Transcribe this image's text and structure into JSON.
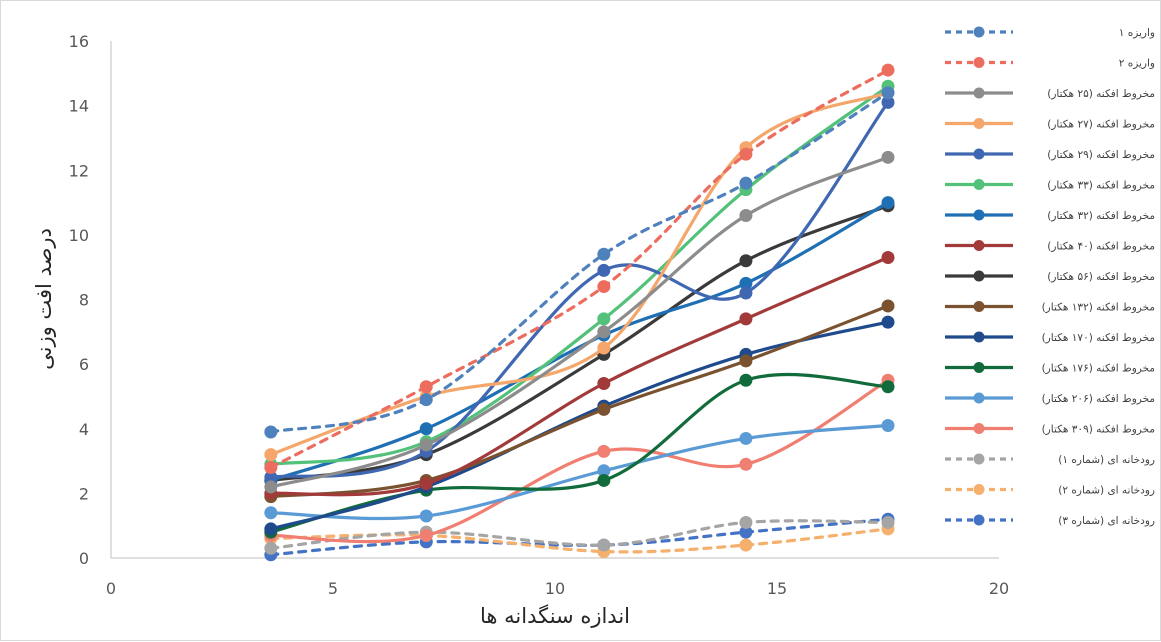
{
  "chart_data": {
    "type": "line",
    "title": "",
    "xlabel": "اندازه سنگدانه ها",
    "ylabel": "درصد افت وزنی",
    "xlim": [
      0,
      20
    ],
    "ylim": [
      0,
      16
    ],
    "xticks": [
      0,
      5,
      10,
      15,
      20
    ],
    "yticks": [
      0,
      2,
      4,
      6,
      8,
      10,
      12,
      14,
      16
    ],
    "grid": false,
    "legend_position": "right",
    "x": [
      3.6,
      7.1,
      11.1,
      14.3,
      17.5
    ],
    "series": [
      {
        "name": "واریزه ۱",
        "color": "#4f81bd",
        "dashed": true,
        "values": [
          3.9,
          4.9,
          9.4,
          11.6,
          14.4
        ]
      },
      {
        "name": "واریزه ۲",
        "color": "#ec6d5e",
        "dashed": true,
        "values": [
          2.8,
          5.3,
          8.4,
          12.5,
          15.1
        ]
      },
      {
        "name": "مخروط افکنه (۲۵ هکتار)",
        "color": "#8c8c8c",
        "dashed": false,
        "values": [
          2.2,
          3.5,
          7.0,
          10.6,
          12.4
        ]
      },
      {
        "name": "مخروط افکنه (۲۷ هکتار)",
        "color": "#f5a76b",
        "dashed": false,
        "values": [
          3.2,
          5.0,
          6.5,
          12.7,
          14.4
        ]
      },
      {
        "name": "مخروط افکنه (۲۹ هکتار)",
        "color": "#4068b2",
        "dashed": false,
        "values": [
          2.5,
          3.3,
          8.9,
          8.2,
          14.1
        ]
      },
      {
        "name": "مخروط افکنه (۳۳ هکتار)",
        "color": "#53c17a",
        "dashed": false,
        "values": [
          2.9,
          3.6,
          7.4,
          11.4,
          14.6
        ]
      },
      {
        "name": "مخروط افکنه (۳۲ هکتار)",
        "color": "#1f6fb4",
        "dashed": false,
        "values": [
          2.4,
          4.0,
          6.9,
          8.5,
          11.0
        ]
      },
      {
        "name": "مخروط افکنه (۴۰ هکتار)",
        "color": "#a33a3a",
        "dashed": false,
        "values": [
          2.0,
          2.3,
          5.4,
          7.4,
          9.3
        ]
      },
      {
        "name": "مخروط افکنه (۵۶ هکتار)",
        "color": "#3a3a3a",
        "dashed": false,
        "values": [
          2.4,
          3.2,
          6.3,
          9.2,
          10.9
        ]
      },
      {
        "name": "مخروط افکنه (۱۳۲ هکتار)",
        "color": "#7a5230",
        "dashed": false,
        "values": [
          1.9,
          2.4,
          4.6,
          6.1,
          7.8
        ]
      },
      {
        "name": "مخروط افکنه (۱۷۰ هکتار)",
        "color": "#1f4a8c",
        "dashed": false,
        "values": [
          0.9,
          2.2,
          4.7,
          6.3,
          7.3
        ]
      },
      {
        "name": "مخروط افکنه (۱۷۶ هکتار)",
        "color": "#116b3b",
        "dashed": false,
        "values": [
          0.8,
          2.1,
          2.4,
          5.5,
          5.3
        ]
      },
      {
        "name": "مخروط افکنه (۲۰۶ هکتار)",
        "color": "#5a9bd5",
        "dashed": false,
        "values": [
          1.4,
          1.3,
          2.7,
          3.7,
          4.1
        ]
      },
      {
        "name": "مخروط افکنه (۳۰۹ هکتار)",
        "color": "#f07f72",
        "dashed": false,
        "values": [
          0.7,
          0.7,
          3.3,
          2.9,
          5.5
        ]
      },
      {
        "name": "رودخانه ای (شماره ۱)",
        "color": "#a5a5a5",
        "dashed": true,
        "values": [
          0.3,
          0.8,
          0.4,
          1.1,
          1.1
        ]
      },
      {
        "name": "رودخانه ای (شماره ۲)",
        "color": "#f5b06d",
        "dashed": true,
        "values": [
          0.6,
          0.7,
          0.2,
          0.4,
          0.9
        ]
      },
      {
        "name": "رودخانه ای (شماره ۳)",
        "color": "#4472c4",
        "dashed": true,
        "values": [
          0.1,
          0.5,
          0.4,
          0.8,
          1.2
        ]
      }
    ]
  }
}
